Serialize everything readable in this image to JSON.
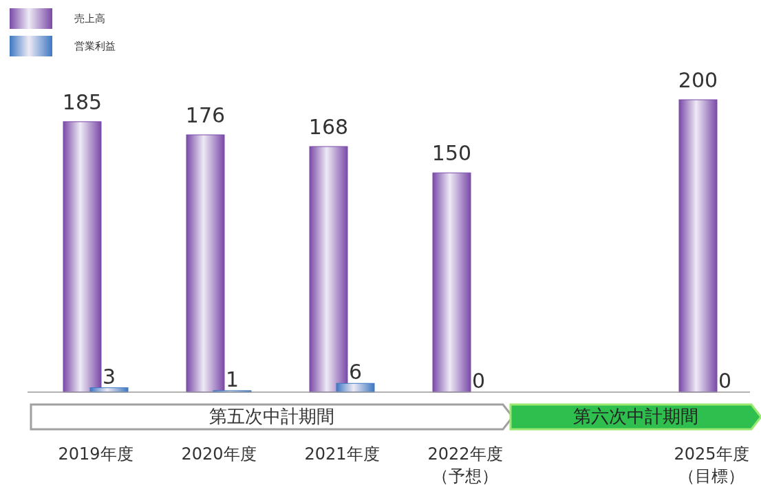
{
  "chart_data": {
    "type": "bar",
    "categories": [
      "2019年度",
      "2020年度",
      "2021年度",
      "2022年度（予想）",
      null,
      "2025年度（目標）"
    ],
    "series": [
      {
        "name": "売上高",
        "color": "#7a4aa8",
        "values": [
          185,
          176,
          168,
          150,
          null,
          200
        ]
      },
      {
        "name": "営業利益",
        "color": "#3d78c2",
        "values": [
          3,
          1,
          6,
          0,
          null,
          0
        ]
      }
    ],
    "data_labels": true,
    "legend": "top left",
    "annotations": [
      "第五次中計期間",
      "第六次中計期間"
    ]
  }
}
